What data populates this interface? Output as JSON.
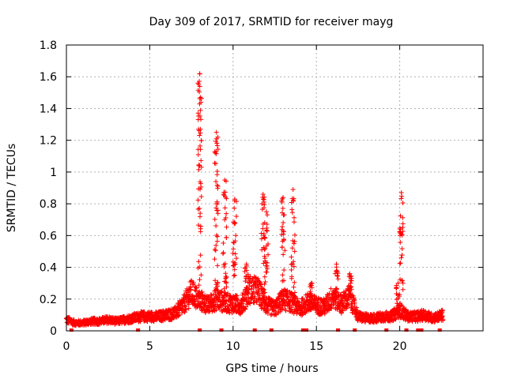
{
  "chart_data": {
    "type": "scatter",
    "title": "Day 309 of 2017, SRMTID for receiver mayg",
    "xlabel": "GPS time / hours",
    "ylabel": "SRMTID / TECUs",
    "xlim": [
      0,
      25
    ],
    "ylim": [
      0,
      1.8
    ],
    "xticks": [
      0,
      5,
      10,
      15,
      20
    ],
    "xtick_labels": [
      "0",
      "5",
      "10",
      "15",
      "20"
    ],
    "yticks": [
      0,
      0.2,
      0.4,
      0.6,
      0.8,
      1.0,
      1.2,
      1.4,
      1.6,
      1.8
    ],
    "ytick_labels": [
      "0",
      "0.2",
      "0.4",
      "0.6",
      "0.8",
      "1",
      "1.2",
      "1.4",
      "1.6",
      "1.8"
    ],
    "grid": true,
    "marker": "+",
    "color": "#ff0000",
    "baseline": [
      [
        0.0,
        0.07
      ],
      [
        0.5,
        0.05
      ],
      [
        1.0,
        0.05
      ],
      [
        1.5,
        0.06
      ],
      [
        2.0,
        0.06
      ],
      [
        2.5,
        0.07
      ],
      [
        3.0,
        0.06
      ],
      [
        3.5,
        0.07
      ],
      [
        4.0,
        0.08
      ],
      [
        4.5,
        0.09
      ],
      [
        5.0,
        0.09
      ],
      [
        5.5,
        0.09
      ],
      [
        6.0,
        0.1
      ],
      [
        6.5,
        0.11
      ],
      [
        7.0,
        0.16
      ],
      [
        7.5,
        0.24
      ],
      [
        7.9,
        0.2
      ],
      [
        8.5,
        0.16
      ],
      [
        9.0,
        0.2
      ],
      [
        9.5,
        0.18
      ],
      [
        10.0,
        0.17
      ],
      [
        10.5,
        0.16
      ],
      [
        11.0,
        0.26
      ],
      [
        11.5,
        0.25
      ],
      [
        12.0,
        0.16
      ],
      [
        12.5,
        0.14
      ],
      [
        13.0,
        0.2
      ],
      [
        13.5,
        0.18
      ],
      [
        14.0,
        0.14
      ],
      [
        14.5,
        0.18
      ],
      [
        15.0,
        0.16
      ],
      [
        15.5,
        0.15
      ],
      [
        16.0,
        0.22
      ],
      [
        16.5,
        0.17
      ],
      [
        17.0,
        0.22
      ],
      [
        17.5,
        0.09
      ],
      [
        18.0,
        0.08
      ],
      [
        18.5,
        0.08
      ],
      [
        19.0,
        0.09
      ],
      [
        19.5,
        0.09
      ],
      [
        20.0,
        0.13
      ],
      [
        20.5,
        0.09
      ],
      [
        21.0,
        0.09
      ],
      [
        21.5,
        0.1
      ],
      [
        22.0,
        0.08
      ],
      [
        22.6,
        0.1
      ]
    ],
    "spikes": [
      {
        "x": 8.0,
        "top": 1.62
      },
      {
        "x": 9.0,
        "top": 1.25
      },
      {
        "x": 9.5,
        "top": 0.95
      },
      {
        "x": 10.1,
        "top": 0.83
      },
      {
        "x": 10.8,
        "top": 0.42
      },
      {
        "x": 11.8,
        "top": 0.86
      },
      {
        "x": 12.0,
        "top": 0.75
      },
      {
        "x": 13.0,
        "top": 0.84
      },
      {
        "x": 13.6,
        "top": 0.89
      },
      {
        "x": 14.7,
        "top": 0.3
      },
      {
        "x": 16.2,
        "top": 0.42
      },
      {
        "x": 17.0,
        "top": 0.36
      },
      {
        "x": 19.9,
        "top": 0.3
      },
      {
        "x": 20.1,
        "top": 0.87
      }
    ],
    "zero_markers": [
      0.3,
      4.3,
      8.0,
      9.3,
      11.3,
      12.3,
      14.2,
      14.4,
      16.3,
      17.3,
      19.2,
      20.4,
      21.1,
      21.3,
      22.4
    ]
  }
}
